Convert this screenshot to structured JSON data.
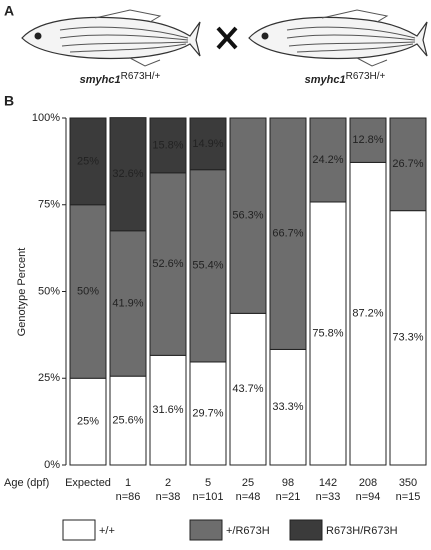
{
  "panel_a": {
    "label": "A",
    "parents": [
      {
        "gene": "smyhc1",
        "allele": "R673H/+"
      },
      {
        "gene": "smyhc1",
        "allele": "R673H/+"
      }
    ]
  },
  "chart_data": {
    "type": "stacked-bar",
    "panel_label": "B",
    "ylabel": "Genotype Percent",
    "xlabel": "Age (dpf)",
    "categories": [
      "Expected",
      "1",
      "2",
      "5",
      "25",
      "98",
      "142",
      "208",
      "350"
    ],
    "sample_sizes": [
      null,
      "n=86",
      "n=38",
      "n=101",
      "n=48",
      "n=21",
      "n=33",
      "n=94",
      "n=15"
    ],
    "ylim": [
      0,
      100
    ],
    "yticks": [
      {
        "value": 0,
        "label": "0%"
      },
      {
        "value": 25,
        "label": "25%"
      },
      {
        "value": 50,
        "label": "50%"
      },
      {
        "value": 75,
        "label": "75%"
      },
      {
        "value": 100,
        "label": "100%"
      }
    ],
    "series": [
      {
        "name": "+/+",
        "color": "#ffffff",
        "label_color": "#222222",
        "values": [
          25,
          25.6,
          31.6,
          29.7,
          43.7,
          33.3,
          75.8,
          87.2,
          73.3
        ],
        "value_labels": [
          "25%",
          "25.6%",
          "31.6%",
          "29.7%",
          "43.7%",
          "33.3%",
          "75.8%",
          "87.2%",
          "73.3%"
        ]
      },
      {
        "name": "+/R673H",
        "color": "#6d6d6d",
        "label_color": "#ffffff",
        "values": [
          50,
          41.9,
          52.6,
          55.4,
          56.3,
          66.7,
          24.2,
          12.8,
          26.7
        ],
        "value_labels": [
          "50%",
          "41.9%",
          "52.6%",
          "55.4%",
          "56.3%",
          "66.7%",
          "24.2%",
          "12.8%",
          "26.7%"
        ]
      },
      {
        "name": "R673H/R673H",
        "color": "#3b3b3b",
        "label_color": "#ffffff",
        "values": [
          25,
          32.6,
          15.8,
          14.9,
          0,
          0,
          0,
          0,
          0
        ],
        "value_labels": [
          "25%",
          "32.6%",
          "15.8%",
          "14.9%",
          null,
          null,
          null,
          null,
          null
        ]
      }
    ]
  }
}
